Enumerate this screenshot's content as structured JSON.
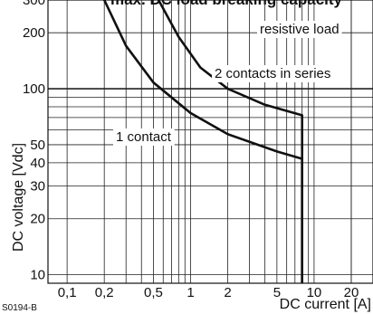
{
  "chart_data": {
    "type": "line",
    "title": "max. DC load breaking capacity",
    "xlabel": "DC current [A]",
    "ylabel": "DC voltage [Vdc]",
    "x_scale": "log",
    "y_scale": "log",
    "xlim": [
      0.07,
      30
    ],
    "ylim": [
      9,
      300
    ],
    "x_ticks": [
      0.1,
      0.2,
      0.5,
      1,
      2,
      5,
      10,
      20
    ],
    "x_tick_labels": [
      "0,1",
      "0,2",
      "0,5",
      "1",
      "2",
      "5",
      "10",
      "20"
    ],
    "y_ticks": [
      10,
      20,
      30,
      40,
      50,
      100,
      200,
      300
    ],
    "y_tick_labels": [
      "10",
      "20",
      "30",
      "40",
      "50",
      "100",
      "200",
      "300"
    ],
    "grid": true,
    "series": [
      {
        "name": "1 contact",
        "points": [
          [
            0.2,
            300
          ],
          [
            0.3,
            170
          ],
          [
            0.5,
            108
          ],
          [
            1,
            74
          ],
          [
            2,
            57
          ],
          [
            5,
            46
          ],
          [
            8,
            42
          ],
          [
            8,
            9
          ]
        ]
      },
      {
        "name": "2 contacts in series",
        "points": [
          [
            0.55,
            300
          ],
          [
            0.8,
            190
          ],
          [
            1.2,
            130
          ],
          [
            2,
            100
          ],
          [
            4,
            82
          ],
          [
            8,
            72
          ],
          [
            8,
            9
          ]
        ]
      }
    ],
    "annotations": [
      "resistive load"
    ],
    "figure_code": "S0194-B"
  }
}
